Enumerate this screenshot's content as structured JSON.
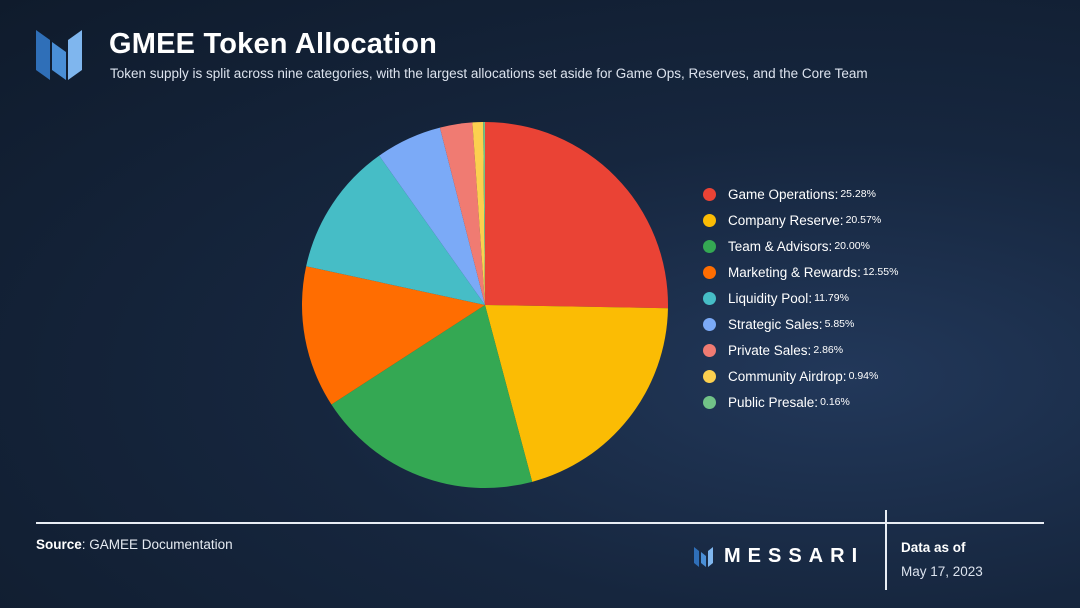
{
  "header": {
    "title": "GMEE Token Allocation",
    "subtitle": "Token supply is split across nine categories, with the largest allocations set aside for Game Ops, Reserves, and the Core Team"
  },
  "chart_data": {
    "type": "pie",
    "title": "GMEE Token Allocation",
    "legend_position": "right",
    "slices": [
      {
        "label": "Game Operations",
        "value": 25.28,
        "display": "25.28%",
        "color": "#ea4335"
      },
      {
        "label": "Company Reserve",
        "value": 20.57,
        "display": "20.57%",
        "color": "#fbbc04"
      },
      {
        "label": "Team & Advisors",
        "value": 20.0,
        "display": "20.00%",
        "color": "#34a853"
      },
      {
        "label": "Marketing & Rewards",
        "value": 12.55,
        "display": "12.55%",
        "color": "#ff6d01"
      },
      {
        "label": "Liquidity Pool",
        "value": 11.79,
        "display": "11.79%",
        "color": "#46bdc6"
      },
      {
        "label": "Strategic Sales",
        "value": 5.85,
        "display": "5.85%",
        "color": "#7baaf7"
      },
      {
        "label": "Private Sales",
        "value": 2.86,
        "display": "2.86%",
        "color": "#f07b72"
      },
      {
        "label": "Community Airdrop",
        "value": 0.94,
        "display": "0.94%",
        "color": "#fcd04f"
      },
      {
        "label": "Public Presale",
        "value": 0.16,
        "display": "0.16%",
        "color": "#71c287"
      }
    ]
  },
  "footer": {
    "source_label": "Source",
    "source_text": ": GAMEE Documentation",
    "brand": "MESSARI",
    "as_of_label": "Data as of",
    "as_of_date": "May 17, 2023"
  }
}
